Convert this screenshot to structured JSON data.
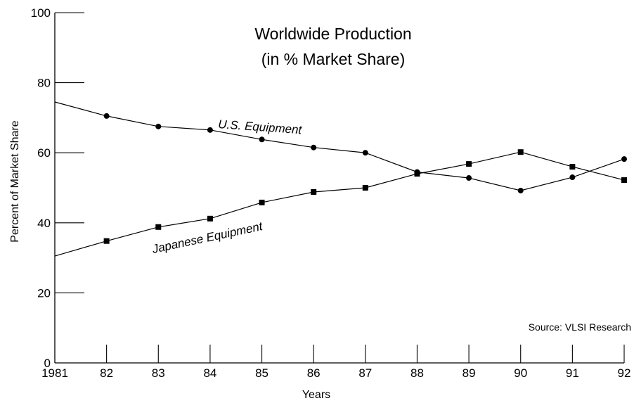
{
  "chart_data": {
    "type": "line",
    "title_line1": "Worldwide Production",
    "title_line2": "(in % Market Share)",
    "xlabel": "Years",
    "ylabel": "Percent of Market Share",
    "x": [
      1981,
      1982,
      1983,
      1984,
      1985,
      1986,
      1987,
      1988,
      1989,
      1990,
      1991,
      1992
    ],
    "x_tick_labels": [
      "1981",
      "82",
      "83",
      "84",
      "85",
      "86",
      "87",
      "88",
      "89",
      "90",
      "91",
      "92"
    ],
    "y_ticks": [
      0,
      20,
      40,
      60,
      80,
      100
    ],
    "y_tick_labels": [
      "0",
      "20",
      "40",
      "60",
      "80",
      "100"
    ],
    "xlim": [
      1981,
      1992
    ],
    "ylim": [
      0,
      100
    ],
    "grid": false,
    "legend": "none",
    "series": [
      {
        "name": "U.S. Equipment",
        "marker": "circle",
        "values": [
          74.5,
          70.5,
          67.5,
          66.5,
          63.8,
          61.5,
          60.0,
          54.5,
          52.8,
          49.2,
          53.0,
          58.2
        ]
      },
      {
        "name": "Japanese Equipment",
        "marker": "square",
        "values": [
          30.5,
          34.8,
          38.8,
          41.2,
          45.8,
          48.8,
          50.0,
          54.0,
          56.8,
          60.2,
          56.0,
          52.2
        ]
      }
    ],
    "annotation": "Source: VLSI Research"
  }
}
